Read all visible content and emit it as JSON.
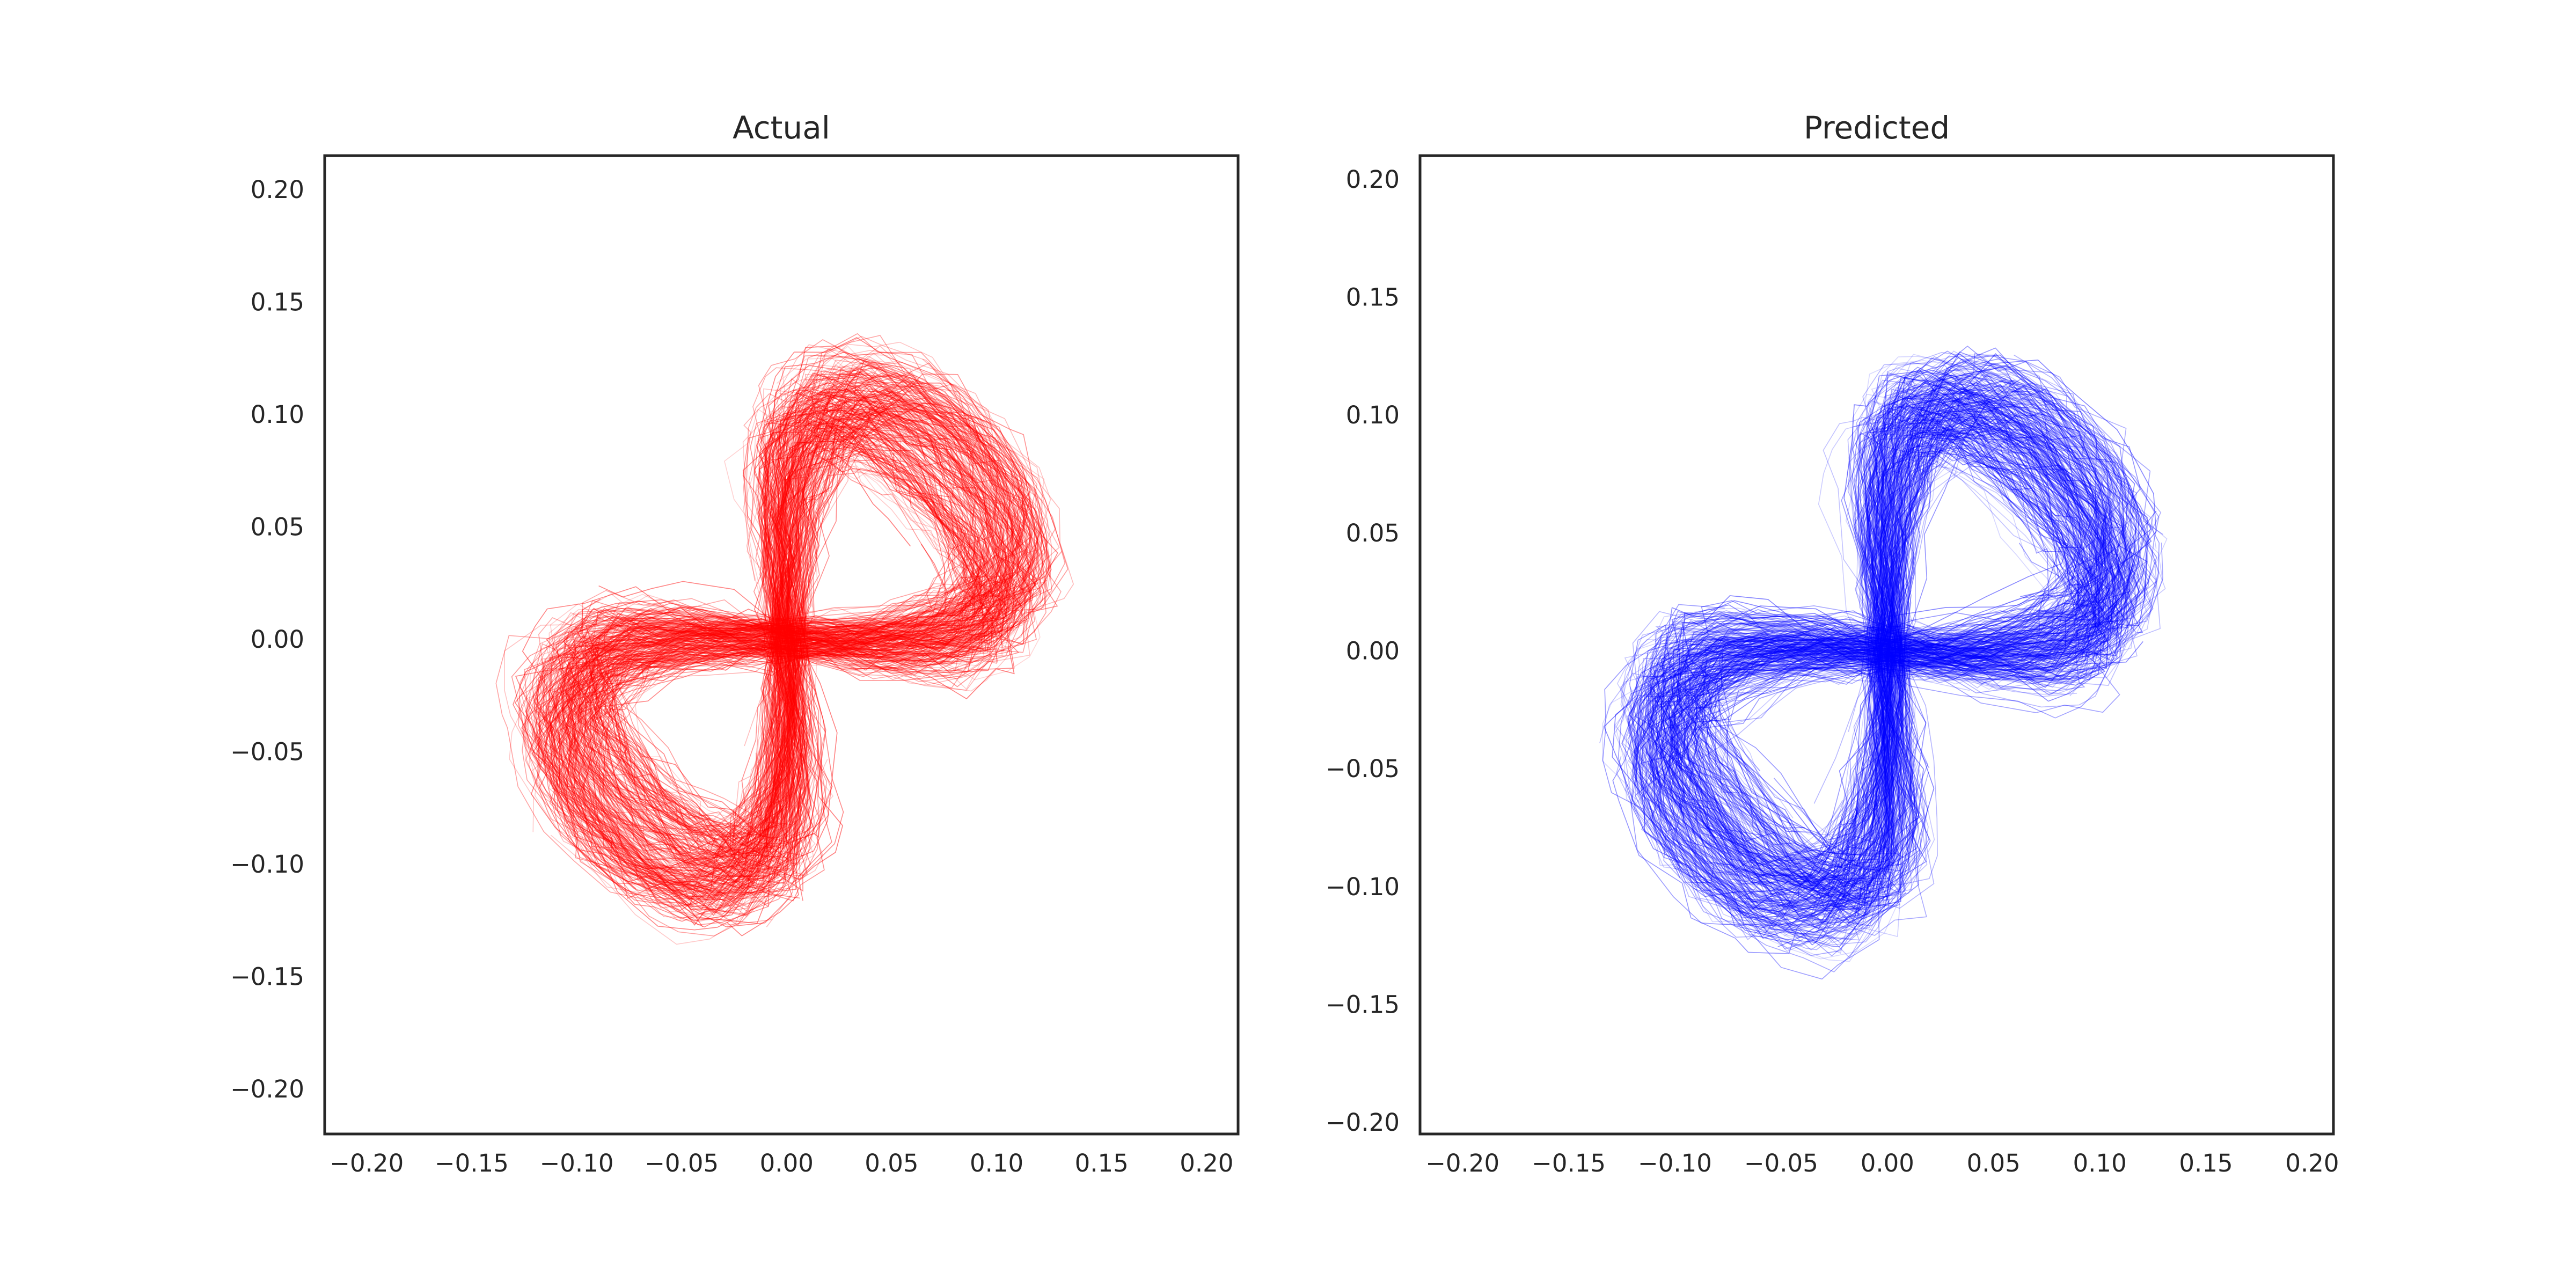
{
  "chart_data": [
    {
      "type": "line",
      "title": "Actual",
      "xlabel": "",
      "ylabel": "",
      "xlim": [
        -0.22,
        0.215
      ],
      "ylim": [
        -0.22,
        0.215
      ],
      "xticks": [
        "−0.20",
        "−0.15",
        "−0.10",
        "−0.05",
        "0.00",
        "0.05",
        "0.10",
        "0.15",
        "0.20"
      ],
      "xtick_values": [
        -0.2,
        -0.15,
        -0.1,
        -0.05,
        0.0,
        0.05,
        0.1,
        0.15,
        0.2
      ],
      "yticks": [
        "0.20",
        "0.15",
        "0.10",
        "0.05",
        "0.00",
        "−0.05",
        "−0.10",
        "−0.15",
        "−0.20"
      ],
      "ytick_values": [
        0.2,
        0.15,
        0.1,
        0.05,
        0.0,
        -0.05,
        -0.1,
        -0.15,
        -0.2
      ],
      "grid": false,
      "color": "#ff0000",
      "series": [
        {
          "x": [
            0.0,
            0.06,
            0.1,
            0.13,
            0.12,
            0.08,
            0.04,
            0.0,
            -0.04,
            -0.08,
            -0.12,
            -0.13,
            -0.1,
            -0.06,
            -0.02,
            0.0
          ],
          "y": [
            0.0,
            0.08,
            0.12,
            0.1,
            0.06,
            0.04,
            0.02,
            0.0,
            -0.02,
            -0.04,
            -0.06,
            -0.1,
            -0.12,
            -0.08,
            -0.03,
            0.0
          ]
        }
      ]
    },
    {
      "type": "line",
      "title": "Predicted",
      "xlabel": "",
      "ylabel": "",
      "xlim": [
        -0.22,
        0.21
      ],
      "ylim": [
        -0.205,
        0.21
      ],
      "xticks": [
        "−0.20",
        "−0.15",
        "−0.10",
        "−0.05",
        "0.00",
        "0.05",
        "0.10",
        "0.15",
        "0.20"
      ],
      "xtick_values": [
        -0.2,
        -0.15,
        -0.1,
        -0.05,
        0.0,
        0.05,
        0.1,
        0.15,
        0.2
      ],
      "yticks": [
        "0.20",
        "0.15",
        "0.10",
        "0.05",
        "0.00",
        "−0.05",
        "−0.10",
        "−0.15",
        "−0.20"
      ],
      "ytick_values": [
        0.2,
        0.15,
        0.1,
        0.05,
        0.0,
        -0.05,
        -0.1,
        -0.15,
        -0.2
      ],
      "grid": false,
      "color": "#0000ff",
      "series": [
        {
          "x": [
            0.0,
            0.06,
            0.1,
            0.13,
            0.12,
            0.08,
            0.04,
            0.0,
            -0.04,
            -0.08,
            -0.12,
            -0.13,
            -0.1,
            -0.06,
            -0.02,
            0.0
          ],
          "y": [
            0.0,
            0.08,
            0.12,
            0.1,
            0.06,
            0.04,
            0.02,
            0.0,
            -0.02,
            -0.04,
            -0.06,
            -0.1,
            -0.12,
            -0.08,
            -0.03,
            0.0
          ]
        }
      ]
    }
  ]
}
